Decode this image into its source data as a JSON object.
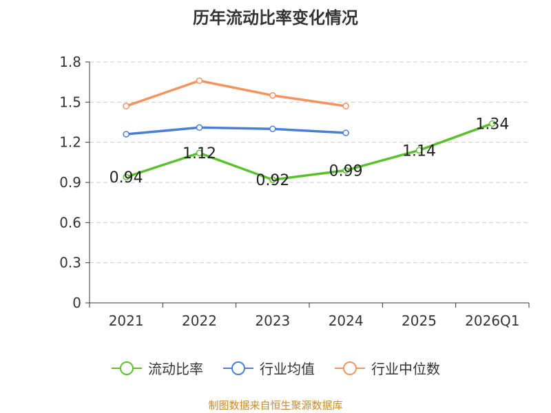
{
  "chart_data": {
    "type": "line",
    "title": "历年流动比率变化情况",
    "categories": [
      "2021",
      "2022",
      "2023",
      "2024",
      "2025",
      "2026Q1"
    ],
    "ylim": [
      0,
      1.8
    ],
    "yticks": [
      "0",
      "0.3",
      "0.6",
      "0.9",
      "1.2",
      "1.5",
      "1.8"
    ],
    "grid": true,
    "legend_position": "bottom",
    "series": [
      {
        "name": "流动比率",
        "color": "#5ac12c",
        "values": [
          0.94,
          1.12,
          0.92,
          0.99,
          1.14,
          1.34
        ],
        "labels": [
          "0.94",
          "1.12",
          "0.92",
          "0.99",
          "1.14",
          "1.34"
        ],
        "show_labels": true
      },
      {
        "name": "行业均值",
        "color": "#4a7fd6",
        "values": [
          1.26,
          1.31,
          1.3,
          1.27,
          null,
          null
        ],
        "show_labels": false
      },
      {
        "name": "行业中位数",
        "color": "#f5935f",
        "values": [
          1.47,
          1.66,
          1.55,
          1.47,
          null,
          null
        ],
        "show_labels": false
      }
    ]
  },
  "source_text": "制图数据来自恒生聚源数据库"
}
